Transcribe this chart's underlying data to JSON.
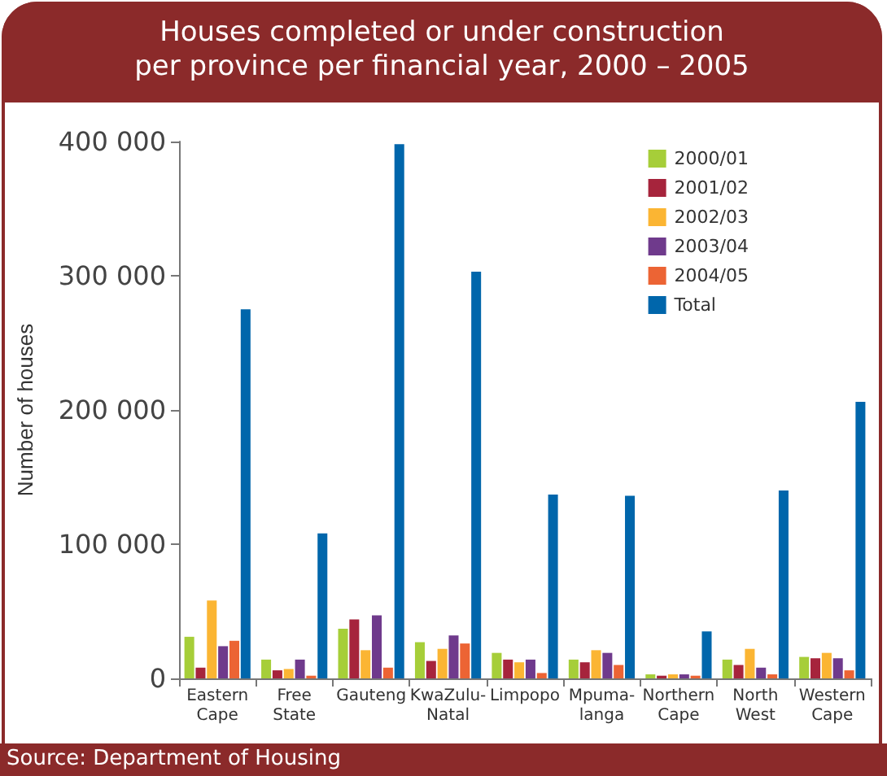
{
  "chart_data": {
    "type": "bar",
    "title": "Houses completed or under construction\nper province per financial year, 2000 – 2005",
    "ylabel": "Number of houses",
    "annotations": [
      "Source: Department of Housing"
    ],
    "categories": [
      "Eastern\nCape",
      "Free\nState",
      "Gauteng",
      "KwaZulu-\nNatal",
      "Limpopo",
      "Mpuma-\nlanga",
      "Northern\nCape",
      "North\nWest",
      "Western\nCape"
    ],
    "series": [
      {
        "name": "2000/01",
        "color": "#a6ce39",
        "values": [
          31000,
          14000,
          37000,
          27000,
          19000,
          14000,
          3000,
          14000,
          16000
        ]
      },
      {
        "name": "2001/02",
        "color": "#a6243c",
        "values": [
          8000,
          6000,
          44000,
          13000,
          14000,
          12000,
          2000,
          10000,
          15000
        ]
      },
      {
        "name": "2002/03",
        "color": "#fbb533",
        "values": [
          58000,
          7000,
          21000,
          22000,
          12000,
          21000,
          3000,
          22000,
          19000
        ]
      },
      {
        "name": "2003/04",
        "color": "#6f3a8c",
        "values": [
          24000,
          14000,
          47000,
          32000,
          14000,
          19000,
          3000,
          8000,
          15000
        ]
      },
      {
        "name": "2004/05",
        "color": "#ec6434",
        "values": [
          28000,
          2000,
          8000,
          26000,
          4000,
          10000,
          2000,
          3000,
          6000
        ]
      },
      {
        "name": "Total",
        "color": "#0066ab",
        "values": [
          275000,
          108000,
          398000,
          303000,
          137000,
          136000,
          35000,
          140000,
          206000
        ]
      }
    ],
    "ylim": [
      0,
      400000
    ],
    "yticks": [
      0,
      {
        "value": 100000,
        "label": "100 000"
      },
      {
        "value": 200000,
        "label": "200 000"
      },
      {
        "value": 300000,
        "label": "300 000"
      },
      {
        "value": 400000,
        "label": "400 000"
      }
    ],
    "grid": false,
    "legend": "top right"
  }
}
